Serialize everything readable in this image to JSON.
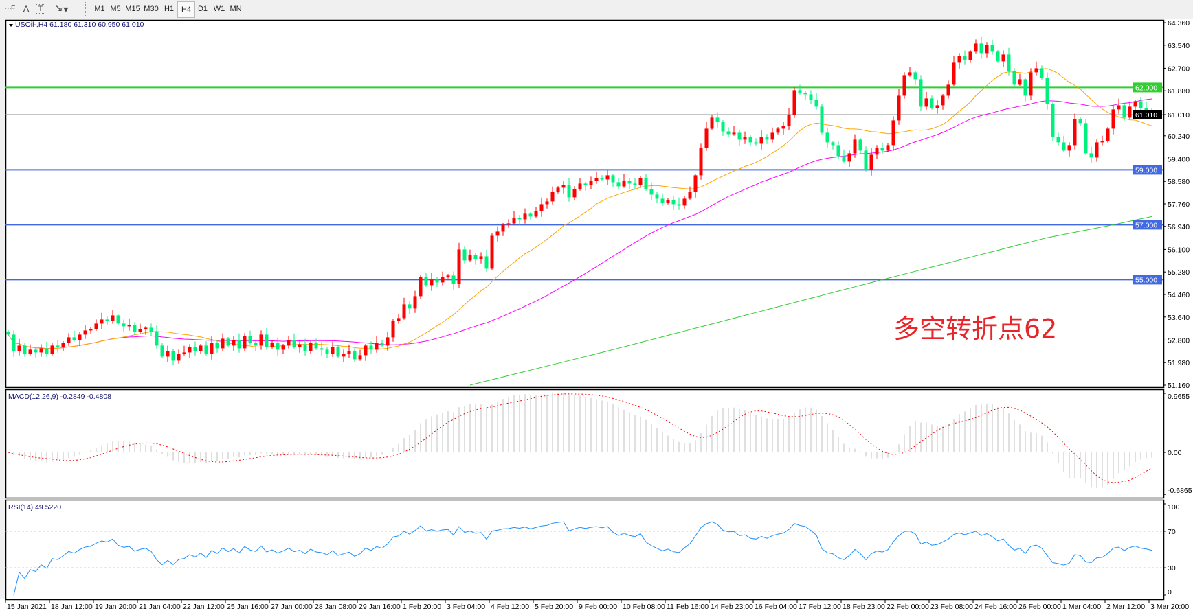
{
  "toolbar": {
    "icons": [
      "grid-f-icon",
      "text-a-icon",
      "text-label-icon",
      "arrows-icon"
    ],
    "timeframes": [
      "M1",
      "M5",
      "M15",
      "M30",
      "H1",
      "H4",
      "D1",
      "W1",
      "MN"
    ],
    "active_timeframe": "H4"
  },
  "main_pane": {
    "label": "USOil-,H4  61.180 61.310 60.950 61.010"
  },
  "annotation": "多空转折点62",
  "macd_pane": {
    "label": "MACD(12,26,9) -0.2849 -0.4808",
    "ticks": [
      "0.9655",
      "0.00",
      "-0.6865"
    ],
    "tick_values": [
      0.9655,
      0,
      -0.6865
    ]
  },
  "rsi_pane": {
    "label": "RSI(14) 49.5220",
    "ticks": [
      "100",
      "70",
      "30",
      "0"
    ],
    "tick_values": [
      100,
      70,
      30,
      0
    ],
    "levels": [
      70,
      30
    ]
  },
  "colors": {
    "bull": "#ff0000",
    "bear": "#00f080",
    "ma_fast": "#ffa500",
    "ma_mid": "#ff00ff",
    "ma_slow": "#32cd32",
    "support": "#4169e1",
    "resistance": "#32cd32",
    "macd_hist": "#c0c0c0",
    "macd_signal": "#ff0000",
    "rsi": "#1e90ff"
  },
  "chart_data": {
    "type": "candlestick",
    "symbol": "USOil-",
    "timeframe": "H4",
    "ylim": [
      51.16,
      64.36
    ],
    "price_ticks": [
      "64.360",
      "63.540",
      "62.700",
      "61.880",
      "61.010",
      "60.240",
      "59.400",
      "58.580",
      "57.760",
      "56.940",
      "56.100",
      "55.280",
      "54.460",
      "53.640",
      "52.800",
      "51.980",
      "51.160"
    ],
    "price_tick_values": [
      64.36,
      63.54,
      62.7,
      61.88,
      61.01,
      60.24,
      59.4,
      58.58,
      57.76,
      56.94,
      56.1,
      55.28,
      54.46,
      53.64,
      52.8,
      51.98,
      51.16
    ],
    "current_price": {
      "value": 61.01,
      "label": "61.010"
    },
    "levels": [
      {
        "value": 62.0,
        "label": "62.000",
        "kind": "resistance"
      },
      {
        "value": 59.0,
        "label": "59.000",
        "kind": "support"
      },
      {
        "value": 57.0,
        "label": "57.000",
        "kind": "support"
      },
      {
        "value": 55.0,
        "label": "55.000",
        "kind": "support"
      }
    ],
    "x_labels": [
      "15 Jan 2021",
      "18 Jan 12:00",
      "19 Jan 20:00",
      "21 Jan 04:00",
      "22 Jan 12:00",
      "25 Jan 16:00",
      "27 Jan 00:00",
      "28 Jan 08:00",
      "29 Jan 16:00",
      "1 Feb 20:00",
      "3 Feb 04:00",
      "4 Feb 12:00",
      "5 Feb 20:00",
      "9 Feb 00:00",
      "10 Feb 08:00",
      "11 Feb 16:00",
      "14 Feb 23:00",
      "16 Feb 04:00",
      "17 Feb 12:00",
      "18 Feb 23:00",
      "22 Feb 00:00",
      "23 Feb 08:00",
      "24 Feb 16:00",
      "26 Feb 00:00",
      "1 Mar 04:00",
      "2 Mar 12:00",
      "3 Mar 20:00"
    ],
    "closes": [
      53.0,
      52.4,
      52.6,
      52.3,
      52.45,
      52.35,
      52.5,
      52.3,
      52.6,
      52.55,
      52.7,
      52.9,
      52.8,
      53.0,
      53.15,
      53.2,
      53.4,
      53.55,
      53.5,
      53.7,
      53.4,
      53.3,
      53.35,
      53.1,
      53.2,
      53.25,
      53.1,
      52.6,
      52.2,
      52.4,
      52.05,
      52.3,
      52.35,
      52.55,
      52.4,
      52.6,
      52.3,
      52.7,
      52.5,
      52.85,
      52.6,
      52.8,
      52.5,
      52.95,
      52.7,
      52.6,
      53.0,
      52.55,
      52.7,
      52.45,
      52.6,
      52.8,
      52.55,
      52.65,
      52.4,
      52.7,
      52.5,
      52.45,
      52.3,
      52.55,
      52.2,
      52.3,
      52.4,
      52.1,
      52.25,
      52.6,
      52.45,
      52.7,
      52.6,
      52.9,
      53.5,
      53.6,
      54.1,
      53.95,
      54.4,
      55.1,
      54.8,
      55.0,
      54.9,
      55.1,
      55.15,
      54.85,
      56.1,
      55.7,
      55.9,
      55.75,
      55.85,
      55.4,
      56.6,
      56.75,
      57.0,
      57.05,
      57.25,
      57.2,
      57.4,
      57.3,
      57.5,
      57.75,
      57.85,
      58.2,
      58.35,
      58.45,
      58.0,
      58.3,
      58.5,
      58.45,
      58.6,
      58.7,
      58.65,
      58.8,
      58.55,
      58.4,
      58.6,
      58.5,
      58.45,
      58.7,
      58.3,
      58.1,
      57.95,
      57.8,
      57.9,
      57.75,
      57.7,
      57.95,
      58.2,
      58.8,
      59.8,
      60.5,
      60.9,
      60.75,
      60.4,
      60.3,
      60.35,
      60.1,
      60.2,
      60.0,
      59.95,
      60.2,
      60.1,
      60.35,
      60.5,
      60.6,
      61.0,
      61.9,
      61.8,
      61.75,
      61.55,
      61.3,
      60.35,
      60.0,
      59.9,
      59.5,
      59.3,
      59.6,
      60.1,
      59.7,
      59.0,
      59.55,
      59.8,
      59.7,
      59.9,
      60.8,
      61.7,
      62.45,
      62.55,
      62.3,
      61.3,
      61.6,
      61.25,
      61.35,
      61.7,
      62.1,
      62.9,
      63.15,
      63.0,
      63.3,
      63.6,
      63.25,
      63.55,
      63.3,
      62.95,
      63.2,
      62.6,
      62.1,
      62.3,
      61.7,
      62.55,
      62.7,
      62.35,
      61.4,
      60.2,
      60.0,
      59.7,
      59.9,
      60.85,
      60.7,
      59.6,
      59.45,
      60.0,
      60.05,
      60.5,
      61.2,
      61.35,
      60.9,
      61.3,
      61.5,
      61.25,
      61.15,
      61.01
    ],
    "ma_slow_points": [
      {
        "bar": 84,
        "value": 51.16
      },
      {
        "bar": 109,
        "value": 52.4
      },
      {
        "bar": 159,
        "value": 55.0
      },
      {
        "bar": 189,
        "value": 56.53
      },
      {
        "bar": 201,
        "value": 57.0
      },
      {
        "bar": 208,
        "value": 57.3
      }
    ]
  }
}
